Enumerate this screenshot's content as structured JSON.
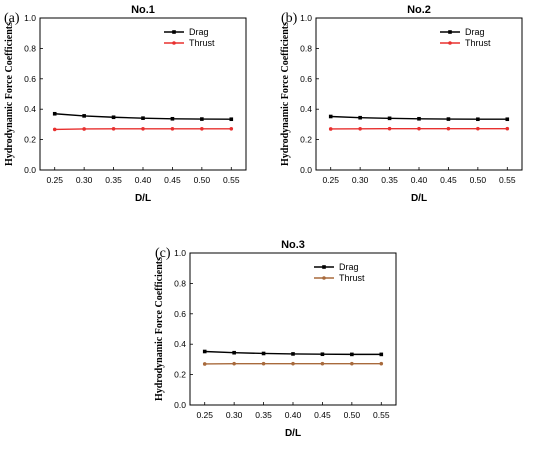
{
  "chart_data": [
    {
      "panel": "(a)",
      "type": "line",
      "title": "No.1",
      "xlabel": "D/L",
      "ylabel": "Hydrodynamic Force Coefficients",
      "x": [
        0.25,
        0.3,
        0.35,
        0.4,
        0.45,
        0.5,
        0.55
      ],
      "x_tick_labels": [
        "0.25",
        "0.30",
        "0.35",
        "0.40",
        "0.45",
        "0.50",
        "0.55"
      ],
      "y_ticks": [
        "0.0",
        "0.2",
        "0.4",
        "0.6",
        "0.8",
        "1.0"
      ],
      "xlim": [
        0.225,
        0.575
      ],
      "ylim": [
        0.0,
        1.0
      ],
      "legend_position": "top-right",
      "series": [
        {
          "name": "Drag",
          "color": "#000000",
          "marker": "square",
          "values": [
            0.37,
            0.356,
            0.347,
            0.341,
            0.337,
            0.335,
            0.334
          ]
        },
        {
          "name": "Thrust",
          "color": "#e8302f",
          "marker": "circle",
          "values": [
            0.267,
            0.27,
            0.271,
            0.271,
            0.271,
            0.271,
            0.271
          ]
        }
      ]
    },
    {
      "panel": "(b)",
      "type": "line",
      "title": "No.2",
      "xlabel": "D/L",
      "ylabel": "Hydrodynamic Force Coefficients",
      "x": [
        0.25,
        0.3,
        0.35,
        0.4,
        0.45,
        0.5,
        0.55
      ],
      "x_tick_labels": [
        "0.25",
        "0.30",
        "0.35",
        "0.40",
        "0.45",
        "0.50",
        "0.55"
      ],
      "y_ticks": [
        "0.0",
        "0.2",
        "0.4",
        "0.6",
        "0.8",
        "1.0"
      ],
      "xlim": [
        0.225,
        0.575
      ],
      "ylim": [
        0.0,
        1.0
      ],
      "legend_position": "top-right",
      "series": [
        {
          "name": "Drag",
          "color": "#000000",
          "marker": "square",
          "values": [
            0.352,
            0.344,
            0.34,
            0.337,
            0.335,
            0.334,
            0.334
          ]
        },
        {
          "name": "Thrust",
          "color": "#e8302f",
          "marker": "circle",
          "values": [
            0.27,
            0.271,
            0.272,
            0.272,
            0.272,
            0.272,
            0.272
          ]
        }
      ]
    },
    {
      "panel": "(c)",
      "type": "line",
      "title": "No.3",
      "xlabel": "D/L",
      "ylabel": "Hydrodynamic Force Coefficients",
      "x": [
        0.25,
        0.3,
        0.35,
        0.4,
        0.45,
        0.5,
        0.55
      ],
      "x_tick_labels": [
        "0.25",
        "0.30",
        "0.35",
        "0.40",
        "0.45",
        "0.50",
        "0.55"
      ],
      "y_ticks": [
        "0.0",
        "0.2",
        "0.4",
        "0.6",
        "0.8",
        "1.0"
      ],
      "xlim": [
        0.225,
        0.575
      ],
      "ylim": [
        0.0,
        1.0
      ],
      "legend_position": "top-right",
      "series": [
        {
          "name": "Drag",
          "color": "#000000",
          "marker": "square",
          "values": [
            0.352,
            0.344,
            0.339,
            0.336,
            0.334,
            0.333,
            0.333
          ]
        },
        {
          "name": "Thrust",
          "color": "#a86a3c",
          "marker": "circle",
          "values": [
            0.27,
            0.272,
            0.272,
            0.272,
            0.272,
            0.272,
            0.272
          ]
        }
      ]
    }
  ]
}
